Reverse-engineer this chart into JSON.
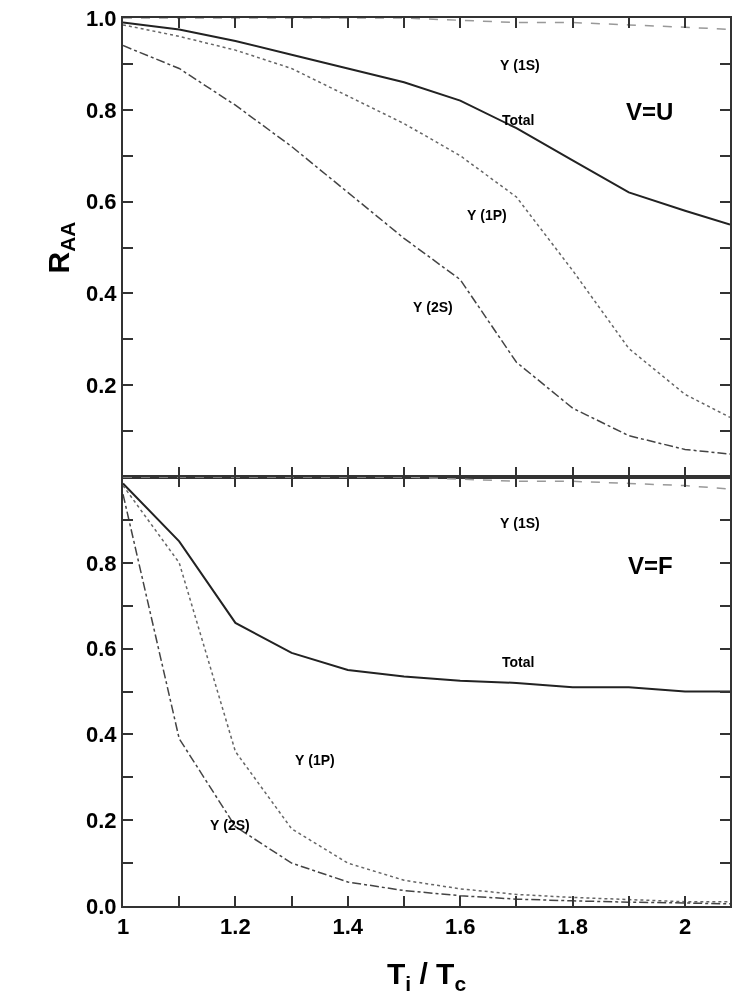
{
  "chart_data": [
    {
      "type": "line",
      "ylabel": "R$_{AA}$",
      "tick_labels": "y",
      "xlim": [
        1,
        2.08
      ],
      "ylim": [
        0,
        1.0
      ],
      "x": [
        1,
        1.1,
        1.2,
        1.3,
        1.4,
        1.5,
        1.6,
        1.7,
        1.8,
        1.9,
        2.0,
        2.08
      ],
      "xticks": [
        {
          "value": 1,
          "label": null
        },
        {
          "value": 1.1,
          "label": null
        },
        {
          "value": 1.2,
          "label": null
        },
        {
          "value": 1.3,
          "label": null
        },
        {
          "value": 1.4,
          "label": null
        },
        {
          "value": 1.5,
          "label": null
        },
        {
          "value": 1.6,
          "label": null
        },
        {
          "value": 1.7,
          "label": null
        },
        {
          "value": 1.8,
          "label": null
        },
        {
          "value": 1.9,
          "label": null
        },
        {
          "value": 2,
          "label": null
        }
      ],
      "yticks": [
        {
          "value": 0.1,
          "label": null
        },
        {
          "value": 0.2,
          "label": "0.2"
        },
        {
          "value": 0.3,
          "label": null
        },
        {
          "value": 0.4,
          "label": "0.4"
        },
        {
          "value": 0.5,
          "label": null
        },
        {
          "value": 0.6,
          "label": "0.6"
        },
        {
          "value": 0.7,
          "label": null
        },
        {
          "value": 0.8,
          "label": "0.8"
        },
        {
          "value": 0.9,
          "label": null
        },
        {
          "value": 1.0,
          "label": "1.0"
        }
      ],
      "series": [
        {
          "color": "#999999",
          "line_style": "dashed",
          "values": [
            1.0,
            1.0,
            1.0,
            1.0,
            1.0,
            1.0,
            0.995,
            0.99,
            0.99,
            0.985,
            0.98,
            0.975
          ]
        },
        {
          "color": "#222222",
          "line_style": "solid",
          "values": [
            0.99,
            0.975,
            0.95,
            0.92,
            0.89,
            0.86,
            0.82,
            0.76,
            0.69,
            0.62,
            0.58,
            0.55
          ]
        },
        {
          "color": "#666666",
          "line_style": "dotted",
          "values": [
            0.985,
            0.96,
            0.93,
            0.89,
            0.83,
            0.77,
            0.7,
            0.61,
            0.45,
            0.28,
            0.18,
            0.13
          ]
        },
        {
          "color": "#444444",
          "line_style": "dashdot",
          "values": [
            0.94,
            0.89,
            0.81,
            0.72,
            0.62,
            0.52,
            0.43,
            0.25,
            0.15,
            0.09,
            0.06,
            0.05
          ]
        }
      ],
      "annotations": [
        "Υ (1S)",
        "Total",
        "Υ (1P)",
        "Υ (2S)",
        "V=U"
      ]
    },
    {
      "type": "line",
      "xlabel": "T$_{i}$ / T$_{c}$",
      "xlim": [
        1,
        2.08
      ],
      "ylim": [
        0,
        1.0
      ],
      "x": [
        1,
        1.1,
        1.2,
        1.3,
        1.4,
        1.5,
        1.6,
        1.7,
        1.8,
        1.9,
        2.0,
        2.08
      ],
      "xticks": [
        1,
        {
          "value": 1.1,
          "label": null
        },
        1.2,
        {
          "value": 1.3,
          "label": null
        },
        1.4,
        {
          "value": 1.5,
          "label": null
        },
        1.6,
        {
          "value": 1.7,
          "label": null
        },
        1.8,
        {
          "value": 1.9,
          "label": null
        },
        2
      ],
      "yticks": [
        {
          "value": 0.0,
          "label": "0.0"
        },
        {
          "value": 0.1,
          "label": null
        },
        0.2,
        {
          "value": 0.3,
          "label": null
        },
        0.4,
        {
          "value": 0.5,
          "label": null
        },
        0.6,
        {
          "value": 0.7,
          "label": null
        },
        0.8,
        {
          "value": 0.9,
          "label": null
        }
      ],
      "series": [
        {
          "color": "#999999",
          "line_style": "dashed",
          "values": [
            1.0,
            1.0,
            1.0,
            1.0,
            1.0,
            1.0,
            0.995,
            0.99,
            0.99,
            0.985,
            0.98,
            0.972
          ]
        },
        {
          "color": "#222222",
          "line_style": "solid",
          "values": [
            0.985,
            0.85,
            0.66,
            0.59,
            0.55,
            0.535,
            0.525,
            0.52,
            0.51,
            0.51,
            0.5,
            0.5
          ]
        },
        {
          "color": "#666666",
          "line_style": "dotted",
          "values": [
            0.98,
            0.8,
            0.36,
            0.18,
            0.1,
            0.06,
            0.04,
            0.027,
            0.02,
            0.015,
            0.01,
            0.01
          ]
        },
        {
          "color": "#444444",
          "line_style": "dashdot",
          "values": [
            0.96,
            0.39,
            0.185,
            0.1,
            0.056,
            0.036,
            0.024,
            0.016,
            0.012,
            0.009,
            0.007,
            0.005
          ]
        }
      ],
      "annotations": [
        "Υ (1S)",
        "Total",
        "Υ (1P)",
        "Υ (2S)",
        "V=F"
      ]
    }
  ]
}
